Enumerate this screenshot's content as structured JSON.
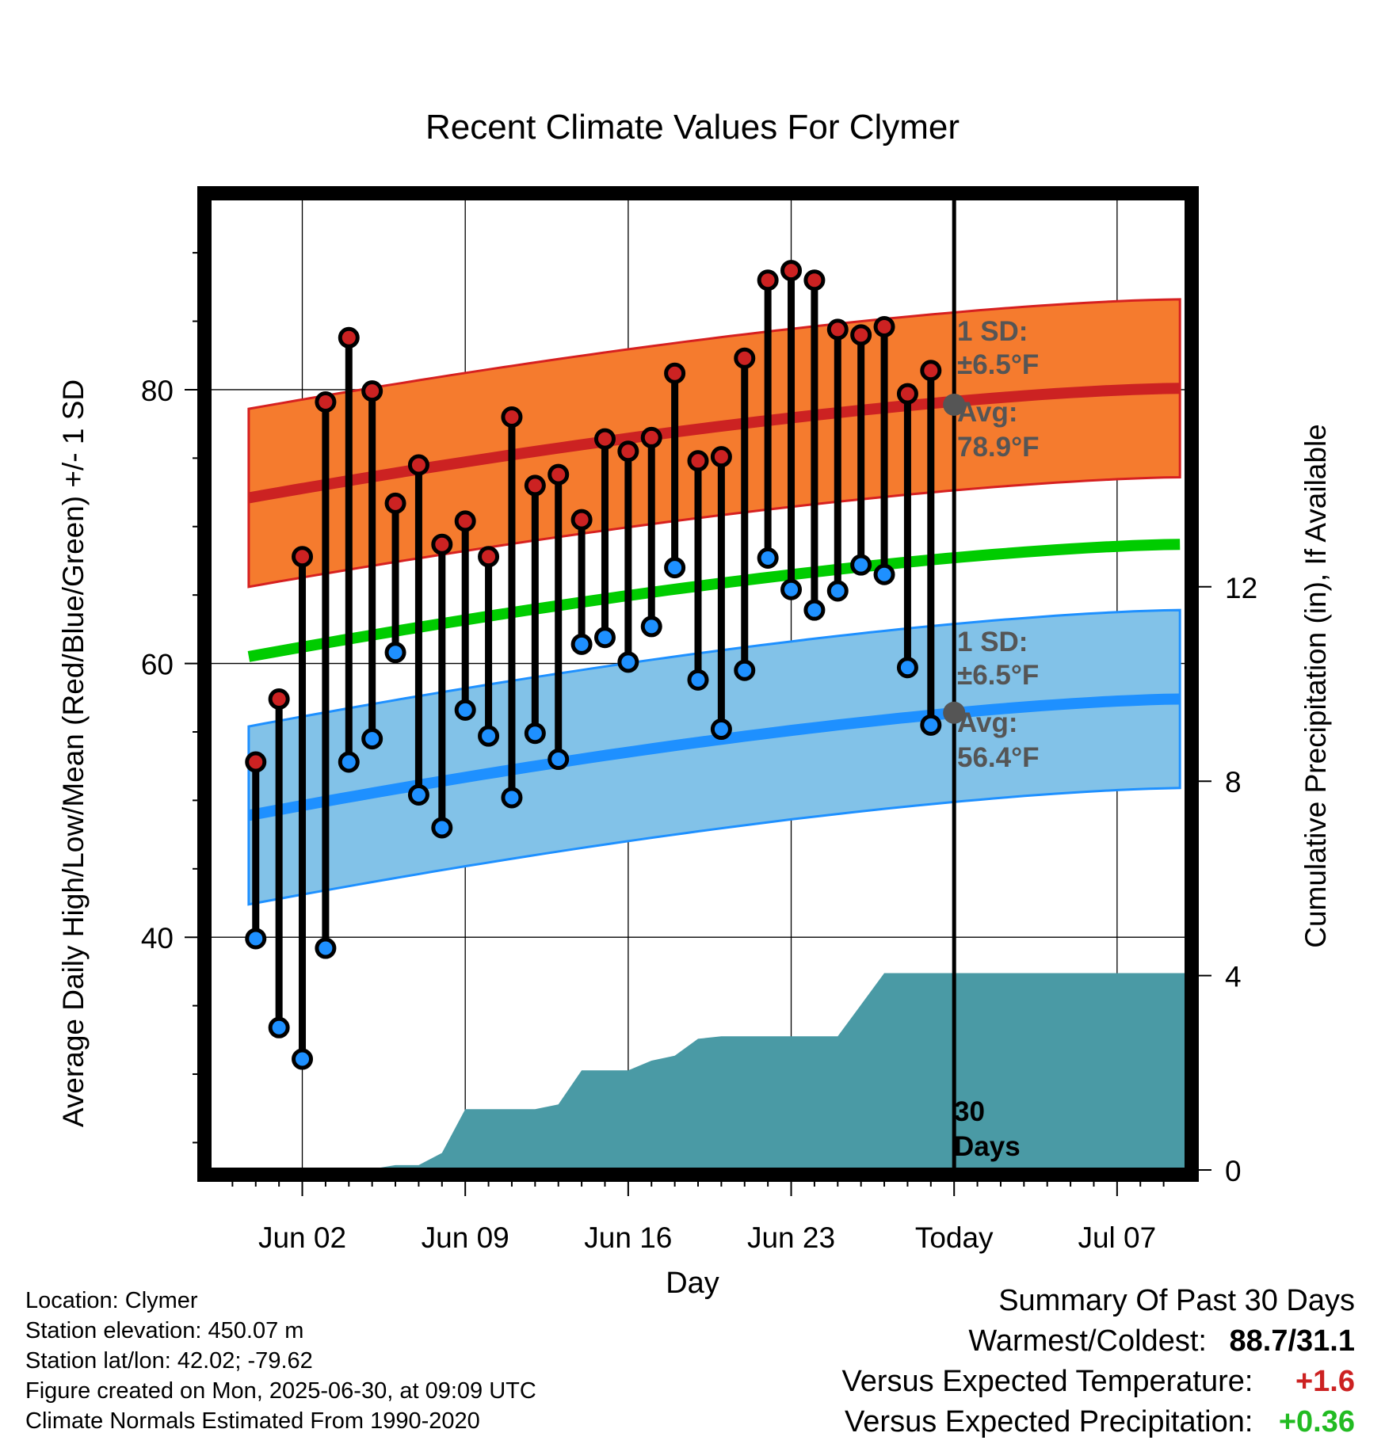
{
  "chart_data": {
    "type": "line",
    "title": "Recent Climate Values For Clymer",
    "xlabel": "Day",
    "ylabel_left": "Average Daily High/Low/Mean (Red/Blue/Green) +/- 1 SD",
    "ylabel_right": "Cumulative Precipitation (in), If Available",
    "x_ticks": [
      "2025-06-02",
      "2025-06-09",
      "2025-06-16",
      "2025-06-23",
      "2025-06-30",
      "2025-07-07"
    ],
    "x_tick_labels": [
      "Jun 02",
      "Jun 09",
      "Jun 16",
      "Jun 23",
      "Today",
      "Jul 07"
    ],
    "xlim": [
      "2025-05-29",
      "2025-07-10"
    ],
    "ylim_left": [
      23,
      94
    ],
    "y_ticks_left": [
      40,
      60,
      80
    ],
    "ylim_right": [
      0,
      20
    ],
    "y_ticks_right": [
      0,
      4,
      8,
      12
    ],
    "grid": true,
    "dates": [
      "2025-05-31",
      "2025-06-01",
      "2025-06-02",
      "2025-06-03",
      "2025-06-04",
      "2025-06-05",
      "2025-06-06",
      "2025-06-07",
      "2025-06-08",
      "2025-06-09",
      "2025-06-10",
      "2025-06-11",
      "2025-06-12",
      "2025-06-13",
      "2025-06-14",
      "2025-06-15",
      "2025-06-16",
      "2025-06-17",
      "2025-06-18",
      "2025-06-19",
      "2025-06-20",
      "2025-06-21",
      "2025-06-22",
      "2025-06-23",
      "2025-06-24",
      "2025-06-25",
      "2025-06-26",
      "2025-06-27",
      "2025-06-28",
      "2025-06-29"
    ],
    "series": [
      {
        "name": "Daily High",
        "color": "#cc2222",
        "values": [
          52.8,
          57.4,
          67.8,
          79.1,
          83.8,
          79.9,
          71.7,
          74.5,
          68.7,
          70.4,
          67.8,
          78.0,
          73.0,
          73.8,
          70.5,
          76.4,
          75.5,
          76.5,
          81.2,
          74.8,
          75.1,
          82.3,
          88.0,
          88.7,
          88.0,
          84.4,
          84.0,
          84.6,
          79.7,
          81.4
        ]
      },
      {
        "name": "Daily Low",
        "color": "#1e90ff",
        "values": [
          39.9,
          33.4,
          31.1,
          39.2,
          52.8,
          54.5,
          60.8,
          50.4,
          48.0,
          56.6,
          54.7,
          50.2,
          54.9,
          53.0,
          61.4,
          61.9,
          60.1,
          62.7,
          67.0,
          58.8,
          55.2,
          59.5,
          67.7,
          65.4,
          63.9,
          65.3,
          67.2,
          66.5,
          59.7,
          55.5
        ]
      },
      {
        "name": "Normal High",
        "color": "#cc2222",
        "start": 72.1,
        "end": 80.1,
        "sd": 6.5
      },
      {
        "name": "Normal Low",
        "color": "#1e90ff",
        "start": 48.9,
        "end": 57.4,
        "sd": 6.5
      },
      {
        "name": "Normal Mean",
        "color": "#00cc00",
        "start": 60.5,
        "end": 68.7
      },
      {
        "name": "Cumulative Precipitation",
        "color": "#4a9aa5",
        "values": [
          0,
          0,
          0,
          0,
          0,
          0.02,
          0.1,
          0.1,
          0.35,
          1.25,
          1.25,
          1.25,
          1.25,
          1.35,
          2.05,
          2.05,
          2.05,
          2.25,
          2.35,
          2.7,
          2.75,
          2.75,
          2.75,
          2.75,
          2.75,
          2.75,
          3.4,
          4.05,
          4.05,
          4.05
        ]
      }
    ],
    "annotations": {
      "high_sd_label": "1 SD:",
      "high_sd_value": "±6.5°F",
      "high_avg_label": "Avg:",
      "high_avg_value": "78.9°F",
      "low_sd_label": "1 SD:",
      "low_sd_value": "±6.5°F",
      "low_avg_label": "Avg:",
      "low_avg_value": "56.4°F",
      "days_line1": "30",
      "days_line2": "Days"
    }
  },
  "info": {
    "location": "Location: Clymer",
    "elevation": "Station elevation: 450.07 m",
    "latlon": "Station lat/lon: 42.02; -79.62",
    "created": "Figure created on Mon, 2025-06-30, at 09:09 UTC",
    "normals": "Climate Normals Estimated From 1990-2020"
  },
  "summary": {
    "heading": "Summary Of Past 30 Days",
    "warm_cold_label": "Warmest/Coldest:",
    "warm_cold_value": "88.7/31.1",
    "temp_label": "Versus Expected Temperature:",
    "temp_value": "+1.6",
    "temp_color": "#cc2222",
    "precip_label": "Versus Expected Precipitation:",
    "precip_value": "+0.36",
    "precip_color": "#22bb22"
  }
}
